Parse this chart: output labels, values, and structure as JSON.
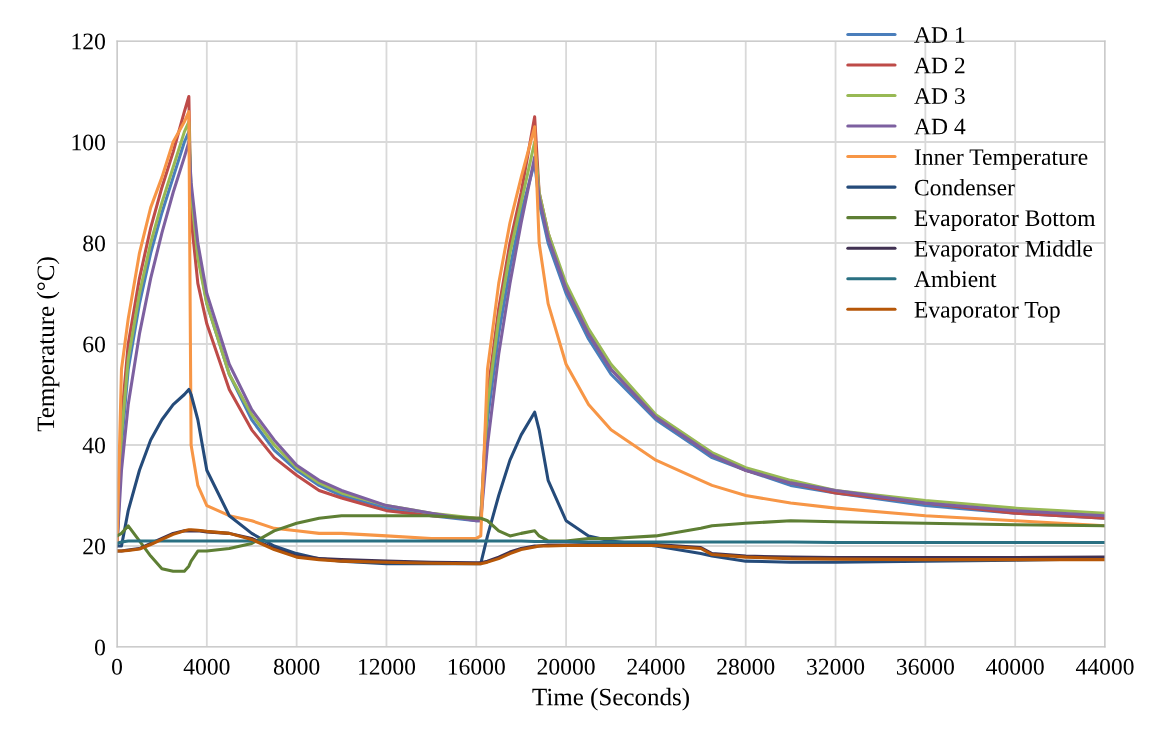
{
  "chart_data": {
    "type": "line",
    "xlabel": "Time (Seconds)",
    "ylabel": "Temperature (°C)",
    "x": [
      0,
      200,
      500,
      1000,
      1500,
      2000,
      2500,
      3000,
      3200,
      3300,
      3600,
      4000,
      5000,
      6000,
      7000,
      8000,
      9000,
      10000,
      12000,
      14000,
      16000,
      16200,
      16500,
      17000,
      17500,
      18000,
      18600,
      18800,
      19200,
      20000,
      21000,
      22000,
      24000,
      26000,
      26500,
      28000,
      30000,
      32000,
      36000,
      40000,
      44000
    ],
    "xlim": [
      0,
      44000
    ],
    "xticks": [
      0,
      4000,
      8000,
      12000,
      16000,
      20000,
      24000,
      28000,
      32000,
      36000,
      40000,
      44000
    ],
    "ylim": [
      0,
      120
    ],
    "yticks": [
      0,
      20,
      40,
      60,
      80,
      100,
      120
    ],
    "grid": true,
    "legend": "top right",
    "series": [
      {
        "name": "AD 1",
        "color": "#4a7ebb",
        "values": [
          20,
          40,
          55,
          68,
          78,
          86,
          93,
          100,
          102,
          90,
          78,
          68,
          54,
          45,
          39,
          35,
          32,
          30,
          27.5,
          26,
          25,
          25,
          45,
          62,
          75,
          86,
          96,
          88,
          80,
          70,
          61,
          54,
          45,
          39,
          37.5,
          35,
          32,
          30.5,
          28,
          26.5,
          25.5
        ]
      },
      {
        "name": "AD 2",
        "color": "#be4b48",
        "values": [
          20,
          45,
          60,
          73,
          83,
          91,
          98,
          106,
          109,
          85,
          72,
          64,
          51,
          43,
          37.5,
          34,
          31,
          29.5,
          27,
          26,
          25.5,
          25.5,
          50,
          67,
          80,
          90,
          105,
          90,
          82,
          71,
          62,
          55,
          45.5,
          39.5,
          38,
          35,
          32.5,
          30.5,
          28.5,
          26.5,
          25.5
        ]
      },
      {
        "name": "AD 3",
        "color": "#98b954",
        "values": [
          20,
          42,
          57,
          70,
          80,
          88,
          95,
          102,
          104,
          90,
          77,
          68,
          54,
          46,
          40,
          35.5,
          32.5,
          30.5,
          28,
          26.5,
          25.5,
          25.5,
          48,
          65,
          78,
          88,
          100,
          90,
          82,
          72,
          63,
          56,
          46,
          40,
          38.5,
          35.5,
          33,
          31,
          29,
          27.5,
          26.5
        ]
      },
      {
        "name": "AD 4",
        "color": "#7d60a0",
        "values": [
          20,
          35,
          48,
          62,
          73,
          82,
          90,
          97,
          100,
          92,
          80,
          70,
          56,
          47,
          41,
          36,
          33,
          31,
          28,
          26.5,
          25,
          25,
          40,
          58,
          72,
          84,
          97,
          89,
          81,
          71,
          62,
          55,
          45.5,
          39.5,
          38,
          35,
          32.5,
          31,
          28.5,
          27,
          26
        ]
      },
      {
        "name": "Inner Temperature",
        "color": "#f79646",
        "values": [
          20,
          55,
          65,
          78,
          87,
          93,
          100,
          104,
          106,
          40,
          32,
          28,
          26,
          25,
          23.5,
          23,
          22.5,
          22.5,
          22,
          21.5,
          21.5,
          22,
          55,
          72,
          84,
          93,
          103,
          80,
          68,
          56,
          48,
          43,
          37,
          33,
          32,
          30,
          28.5,
          27.5,
          26,
          25,
          24
        ]
      },
      {
        "name": "Condenser",
        "color": "#254b7a",
        "values": [
          20,
          20,
          27,
          35,
          41,
          45,
          48,
          50,
          51,
          50,
          45,
          35,
          26,
          22.5,
          20,
          18.5,
          17.5,
          17,
          16.5,
          16.5,
          16.5,
          16.5,
          22,
          30,
          37,
          42,
          46.5,
          43,
          33,
          25,
          22,
          21,
          20,
          18.5,
          18,
          17,
          16.8,
          16.8,
          17,
          17.2,
          17.5
        ]
      },
      {
        "name": "Evaporator Bottom",
        "color": "#5e7f34",
        "values": [
          22,
          22.5,
          24,
          21,
          18,
          15.5,
          15,
          15,
          16,
          17,
          19,
          19,
          19.5,
          20.5,
          23,
          24.5,
          25.5,
          26,
          26,
          26,
          25.5,
          25.5,
          25,
          23,
          22,
          22.5,
          23,
          22,
          21,
          21,
          21.5,
          21.5,
          22,
          23.5,
          24,
          24.5,
          25,
          24.8,
          24.5,
          24.2,
          24
        ]
      },
      {
        "name": "Evaporator Middle",
        "color": "#403152",
        "values": [
          19,
          19,
          19.2,
          19.5,
          20.5,
          21.5,
          22.5,
          23,
          23,
          23,
          23,
          22.8,
          22.5,
          21.5,
          19.5,
          18,
          17.5,
          17.3,
          17,
          16.8,
          16.7,
          16.7,
          17,
          17.8,
          18.8,
          19.5,
          20,
          20,
          20.2,
          20.2,
          20.3,
          20.3,
          20.3,
          19.7,
          18.5,
          18,
          17.8,
          17.7,
          17.7,
          17.7,
          17.8
        ]
      },
      {
        "name": "Ambient",
        "color": "#2a7082",
        "values": [
          20.5,
          20.8,
          21,
          21,
          21,
          21,
          21,
          21,
          21,
          21,
          21,
          21,
          21,
          21,
          21,
          21,
          21,
          21,
          21,
          21,
          21,
          21,
          21,
          21,
          21,
          21,
          20.9,
          20.9,
          20.9,
          20.9,
          20.8,
          20.8,
          20.8,
          20.8,
          20.8,
          20.8,
          20.8,
          20.7,
          20.7,
          20.7,
          20.7
        ]
      },
      {
        "name": "Evaporator Top",
        "color": "#b65708",
        "values": [
          19,
          19,
          19.1,
          19.4,
          20.3,
          21.3,
          22.3,
          23,
          23.2,
          23.2,
          23.1,
          22.9,
          22.5,
          21.3,
          19.3,
          17.8,
          17.3,
          17,
          16.8,
          16.6,
          16.5,
          16.5,
          16.8,
          17.5,
          18.5,
          19.3,
          19.8,
          20,
          20,
          20.1,
          20.1,
          20.1,
          20.1,
          19.5,
          18.3,
          17.8,
          17.5,
          17.4,
          17.3,
          17.3,
          17.3
        ]
      }
    ]
  }
}
